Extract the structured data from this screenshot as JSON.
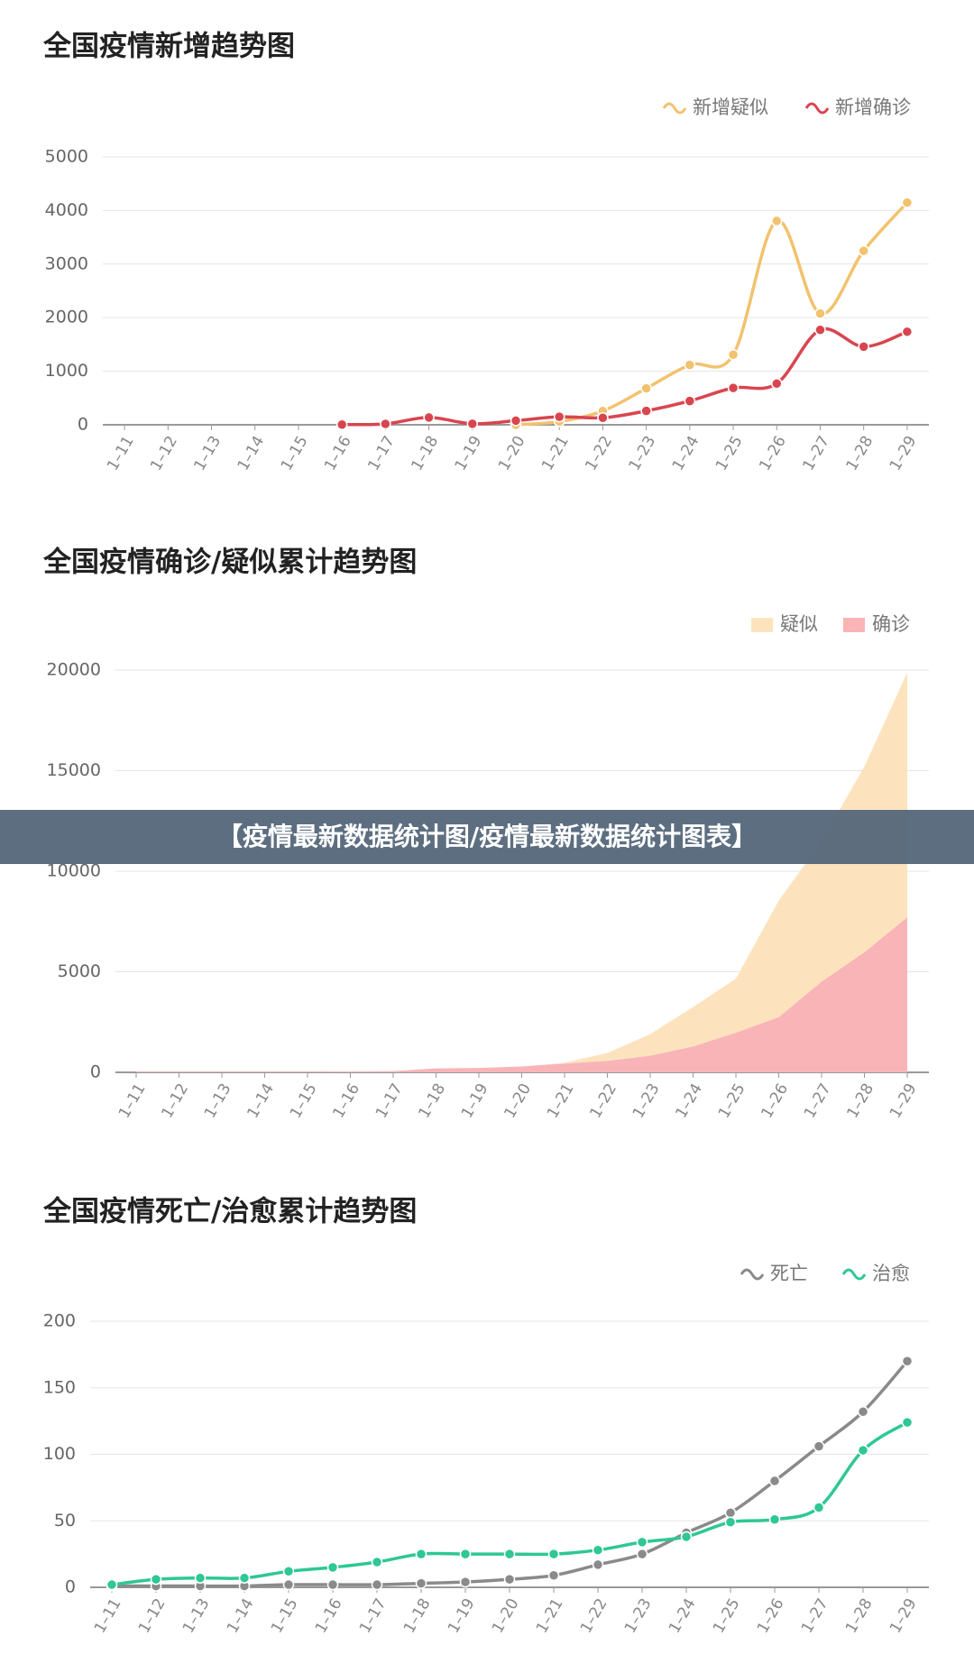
{
  "banner": "【疫情最新数据统计图/疫情最新数据统计图表】",
  "chart_data": [
    {
      "type": "line",
      "title": "全国疫情新增趋势图",
      "categories": [
        "1–11",
        "1–12",
        "1–13",
        "1–14",
        "1–15",
        "1–16",
        "1–17",
        "1–18",
        "1–19",
        "1–20",
        "1–21",
        "1–22",
        "1–23",
        "1–24",
        "1–25",
        "1–26",
        "1–27",
        "1–28",
        "1–29"
      ],
      "series": [
        {
          "name": "新增疑似",
          "color": "#f2c26e",
          "values": [
            null,
            null,
            null,
            null,
            null,
            null,
            null,
            null,
            null,
            0,
            60,
            257,
            680,
            1118,
            1309,
            3806,
            2077,
            3248,
            4148
          ]
        },
        {
          "name": "新增确诊",
          "color": "#d9454f",
          "values": [
            null,
            null,
            null,
            null,
            null,
            4,
            17,
            136,
            19,
            77,
            149,
            131,
            259,
            444,
            688,
            769,
            1771,
            1459,
            1737
          ]
        }
      ],
      "ylim": [
        0,
        5000
      ],
      "yticks": [
        0,
        1000,
        2000,
        3000,
        4000,
        5000
      ],
      "grid": true
    },
    {
      "type": "area",
      "title": "全国疫情确诊/疑似累计趋势图",
      "stacked": true,
      "categories": [
        "1–11",
        "1–12",
        "1–13",
        "1–14",
        "1–15",
        "1–16",
        "1–17",
        "1–18",
        "1–19",
        "1–20",
        "1–21",
        "1–22",
        "1–23",
        "1–24",
        "1–25",
        "1–26",
        "1–27",
        "1–28",
        "1–29"
      ],
      "series": [
        {
          "name": "疑似",
          "color": "#fde3bd",
          "values": [
            0,
            0,
            0,
            0,
            0,
            0,
            0,
            0,
            0,
            0,
            37,
            393,
            1072,
            1965,
            2684,
            5794,
            6973,
            9239,
            12167
          ]
        },
        {
          "name": "确诊",
          "color": "#f9b4b8",
          "values": [
            41,
            41,
            41,
            41,
            41,
            45,
            62,
            198,
            218,
            291,
            440,
            571,
            830,
            1287,
            1975,
            2744,
            4515,
            5974,
            7711
          ]
        }
      ],
      "ylim": [
        0,
        20000
      ],
      "yticks": [
        0,
        5000,
        10000,
        15000,
        20000
      ],
      "grid": true
    },
    {
      "type": "line",
      "title": "全国疫情死亡/治愈累计趋势图",
      "categories": [
        "1–11",
        "1–12",
        "1–13",
        "1–14",
        "1–15",
        "1–16",
        "1–17",
        "1–18",
        "1–19",
        "1–20",
        "1–21",
        "1–22",
        "1–23",
        "1–24",
        "1–25",
        "1–26",
        "1–27",
        "1–28",
        "1–29"
      ],
      "series": [
        {
          "name": "死亡",
          "color": "#8a8a8c",
          "values": [
            1,
            1,
            1,
            1,
            2,
            2,
            2,
            3,
            4,
            6,
            9,
            17,
            25,
            41,
            56,
            80,
            106,
            132,
            170
          ]
        },
        {
          "name": "治愈",
          "color": "#2ec795",
          "values": [
            2,
            6,
            7,
            7,
            12,
            15,
            19,
            25,
            25,
            25,
            25,
            28,
            34,
            38,
            49,
            51,
            60,
            103,
            124
          ]
        }
      ],
      "ylim": [
        0,
        200
      ],
      "yticks": [
        0,
        50,
        100,
        150,
        200
      ],
      "grid": true
    }
  ]
}
